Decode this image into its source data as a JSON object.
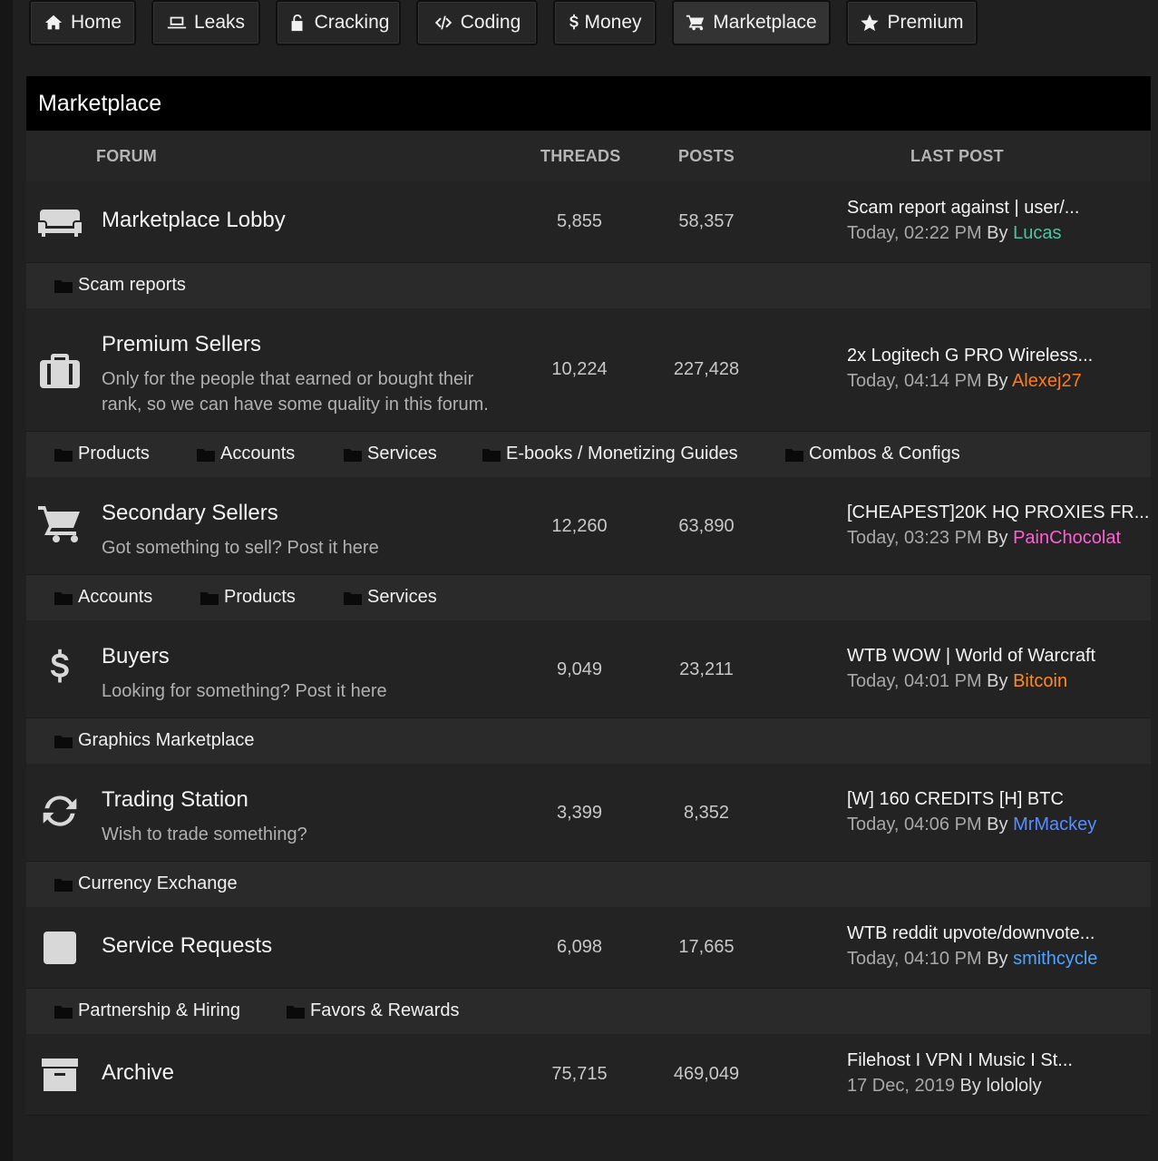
{
  "nav": [
    {
      "label": "Home",
      "icon": "home-icon"
    },
    {
      "label": "Leaks",
      "icon": "laptop-icon"
    },
    {
      "label": "Cracking",
      "icon": "unlock-icon"
    },
    {
      "label": "Coding",
      "icon": "code-icon"
    },
    {
      "label": "Money",
      "icon": "dollar-icon"
    },
    {
      "label": "Marketplace",
      "icon": "cart-icon",
      "active": true
    },
    {
      "label": "Premium",
      "icon": "star-icon"
    }
  ],
  "panel": {
    "title": "Marketplace",
    "columns": {
      "forum": "FORUM",
      "threads": "THREADS",
      "posts": "POSTS",
      "last_post": "LAST POST"
    }
  },
  "forums": [
    {
      "icon": "couch-icon",
      "title": "Marketplace Lobby",
      "desc": "",
      "threads": "5,855",
      "posts": "58,357",
      "last_title": "Scam report against | user/...",
      "last_date": "Today, 02:22 PM",
      "by": "By",
      "user": "Lucas",
      "user_color": "#4fc3a1",
      "subforums": [
        "Scam reports"
      ]
    },
    {
      "icon": "briefcase-icon",
      "title": "Premium Sellers",
      "desc": "Only for the people that earned or bought their rank, so we can have some quality in this forum.",
      "threads": "10,224",
      "posts": "227,428",
      "last_title": "2x Logitech G PRO Wireless...",
      "last_date": "Today, 04:14 PM",
      "by": "By",
      "user": "Alexej27",
      "user_color": "#ff7b1a",
      "subforums": [
        "Products",
        "Accounts",
        "Services",
        "E-books / Monetizing Guides",
        "Combos & Configs"
      ]
    },
    {
      "icon": "cart-icon",
      "title": "Secondary Sellers",
      "desc": "Got something to sell? Post it here",
      "threads": "12,260",
      "posts": "63,890",
      "last_title": "[CHEAPEST]20K HQ PROXIES FR...",
      "last_date": "Today, 03:23 PM",
      "by": "By",
      "user": "PainChocolat",
      "user_color": "#ff5fd2",
      "subforums": [
        "Accounts",
        "Products",
        "Services"
      ]
    },
    {
      "icon": "dollar-icon",
      "title": "Buyers",
      "desc": "Looking for something? Post it here",
      "threads": "9,049",
      "posts": "23,211",
      "last_title": "WTB WOW | World of Warcraft",
      "last_date": "Today, 04:01 PM",
      "by": "By",
      "user": "Bitcoin",
      "user_color": "#ff8a1e",
      "subforums": [
        "Graphics Marketplace"
      ]
    },
    {
      "icon": "refresh-icon",
      "title": "Trading Station",
      "desc": "Wish to trade something?",
      "threads": "3,399",
      "posts": "8,352",
      "last_title": "[W] 160 CREDITS [H] BTC",
      "last_date": "Today, 04:06 PM",
      "by": "By",
      "user": "MrMackey",
      "user_color": "#5b8cff",
      "subforums": [
        "Currency Exchange"
      ]
    },
    {
      "icon": "square-icon",
      "title": "Service Requests",
      "desc": "",
      "threads": "6,098",
      "posts": "17,665",
      "last_title": "WTB reddit upvote/downvote...",
      "last_date": "Today, 04:10 PM",
      "by": "By",
      "user": "smithcycle",
      "user_color": "#4da3ff",
      "subforums": [
        "Partnership & Hiring",
        "Favors & Rewards"
      ]
    },
    {
      "icon": "archive-icon",
      "title": "Archive",
      "desc": "",
      "threads": "75,715",
      "posts": "469,049",
      "last_title": "Filehost I VPN I Music I St...",
      "last_date": "17 Dec, 2019",
      "by": "By",
      "user": "lolololy",
      "user_color": "#e0e0e0",
      "subforums": []
    }
  ]
}
